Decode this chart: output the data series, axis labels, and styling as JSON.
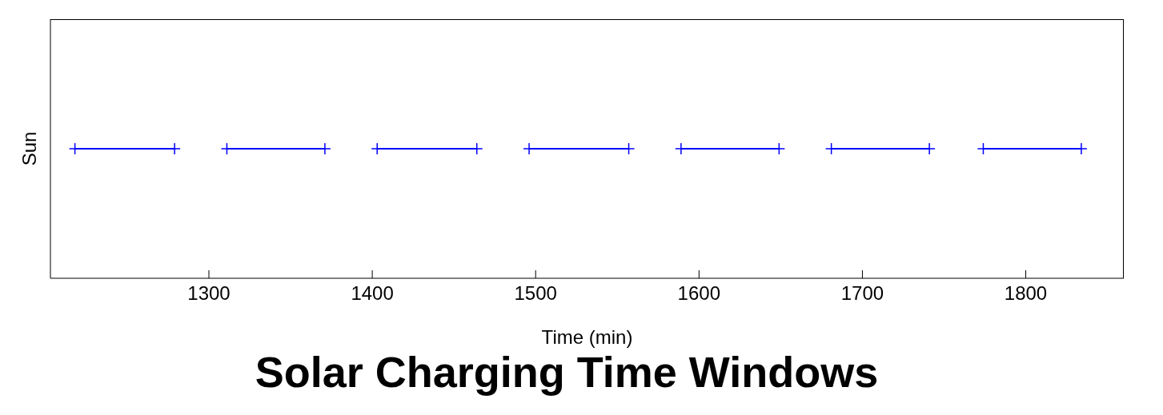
{
  "chart_data": {
    "type": "bar",
    "orientation": "horizontal",
    "title": "Solar Charging Time Windows",
    "xlabel": "Time (min)",
    "categories": [
      "Sun"
    ],
    "series": [
      {
        "color": "#0000ff",
        "base": [
          1218
        ],
        "values": [
          61
        ]
      },
      {
        "color": "#0000ff",
        "base": [
          1311
        ],
        "values": [
          60
        ]
      },
      {
        "color": "#0000ff",
        "base": [
          1403
        ],
        "values": [
          61
        ]
      },
      {
        "color": "#0000ff",
        "base": [
          1496
        ],
        "values": [
          61
        ]
      },
      {
        "color": "#0000ff",
        "base": [
          1589
        ],
        "values": [
          60
        ]
      },
      {
        "color": "#0000ff",
        "base": [
          1681
        ],
        "values": [
          60
        ]
      },
      {
        "color": "#0000ff",
        "base": [
          1774
        ],
        "values": [
          60
        ]
      }
    ],
    "xlim": [
      1203,
      1860
    ],
    "xticks": [
      1300,
      1400,
      1500,
      1600,
      1700,
      1800
    ],
    "marker": "cross",
    "grid": false,
    "legend": false
  }
}
